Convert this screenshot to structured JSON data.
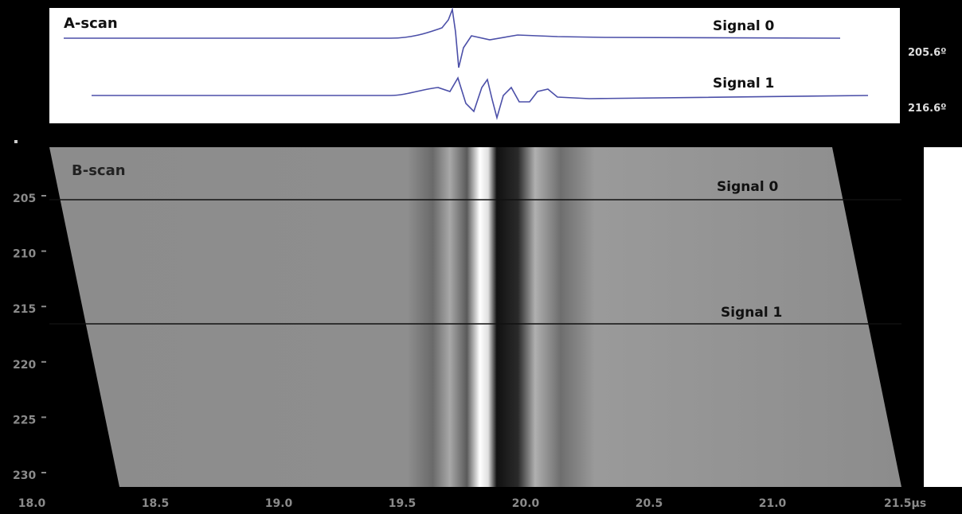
{
  "a_scan": {
    "title": "A-scan",
    "signals": [
      {
        "name": "Signal 0",
        "position": {
          "value": 205.6,
          "label": "205.6º"
        }
      },
      {
        "name": "Signal 1",
        "position": {
          "value": 216.6,
          "label": "216.6º"
        }
      }
    ]
  },
  "b_scan": {
    "title": "B-scan",
    "signal_labels": [
      "Signal 0",
      "Signal 1"
    ],
    "xticks": [
      {
        "value": 18.0,
        "label": "18.0"
      },
      {
        "value": 18.5,
        "label": "18.5"
      },
      {
        "value": 19.0,
        "label": "19.0"
      },
      {
        "value": 19.5,
        "label": "19.5"
      },
      {
        "value": 20.0,
        "label": "20.0"
      },
      {
        "value": 20.5,
        "label": "20.5"
      },
      {
        "value": 21.0,
        "label": "21.0"
      },
      {
        "value": 21.5,
        "label": "21.5µs"
      }
    ],
    "yticks": [
      205,
      210,
      215,
      220,
      225,
      230
    ]
  }
}
